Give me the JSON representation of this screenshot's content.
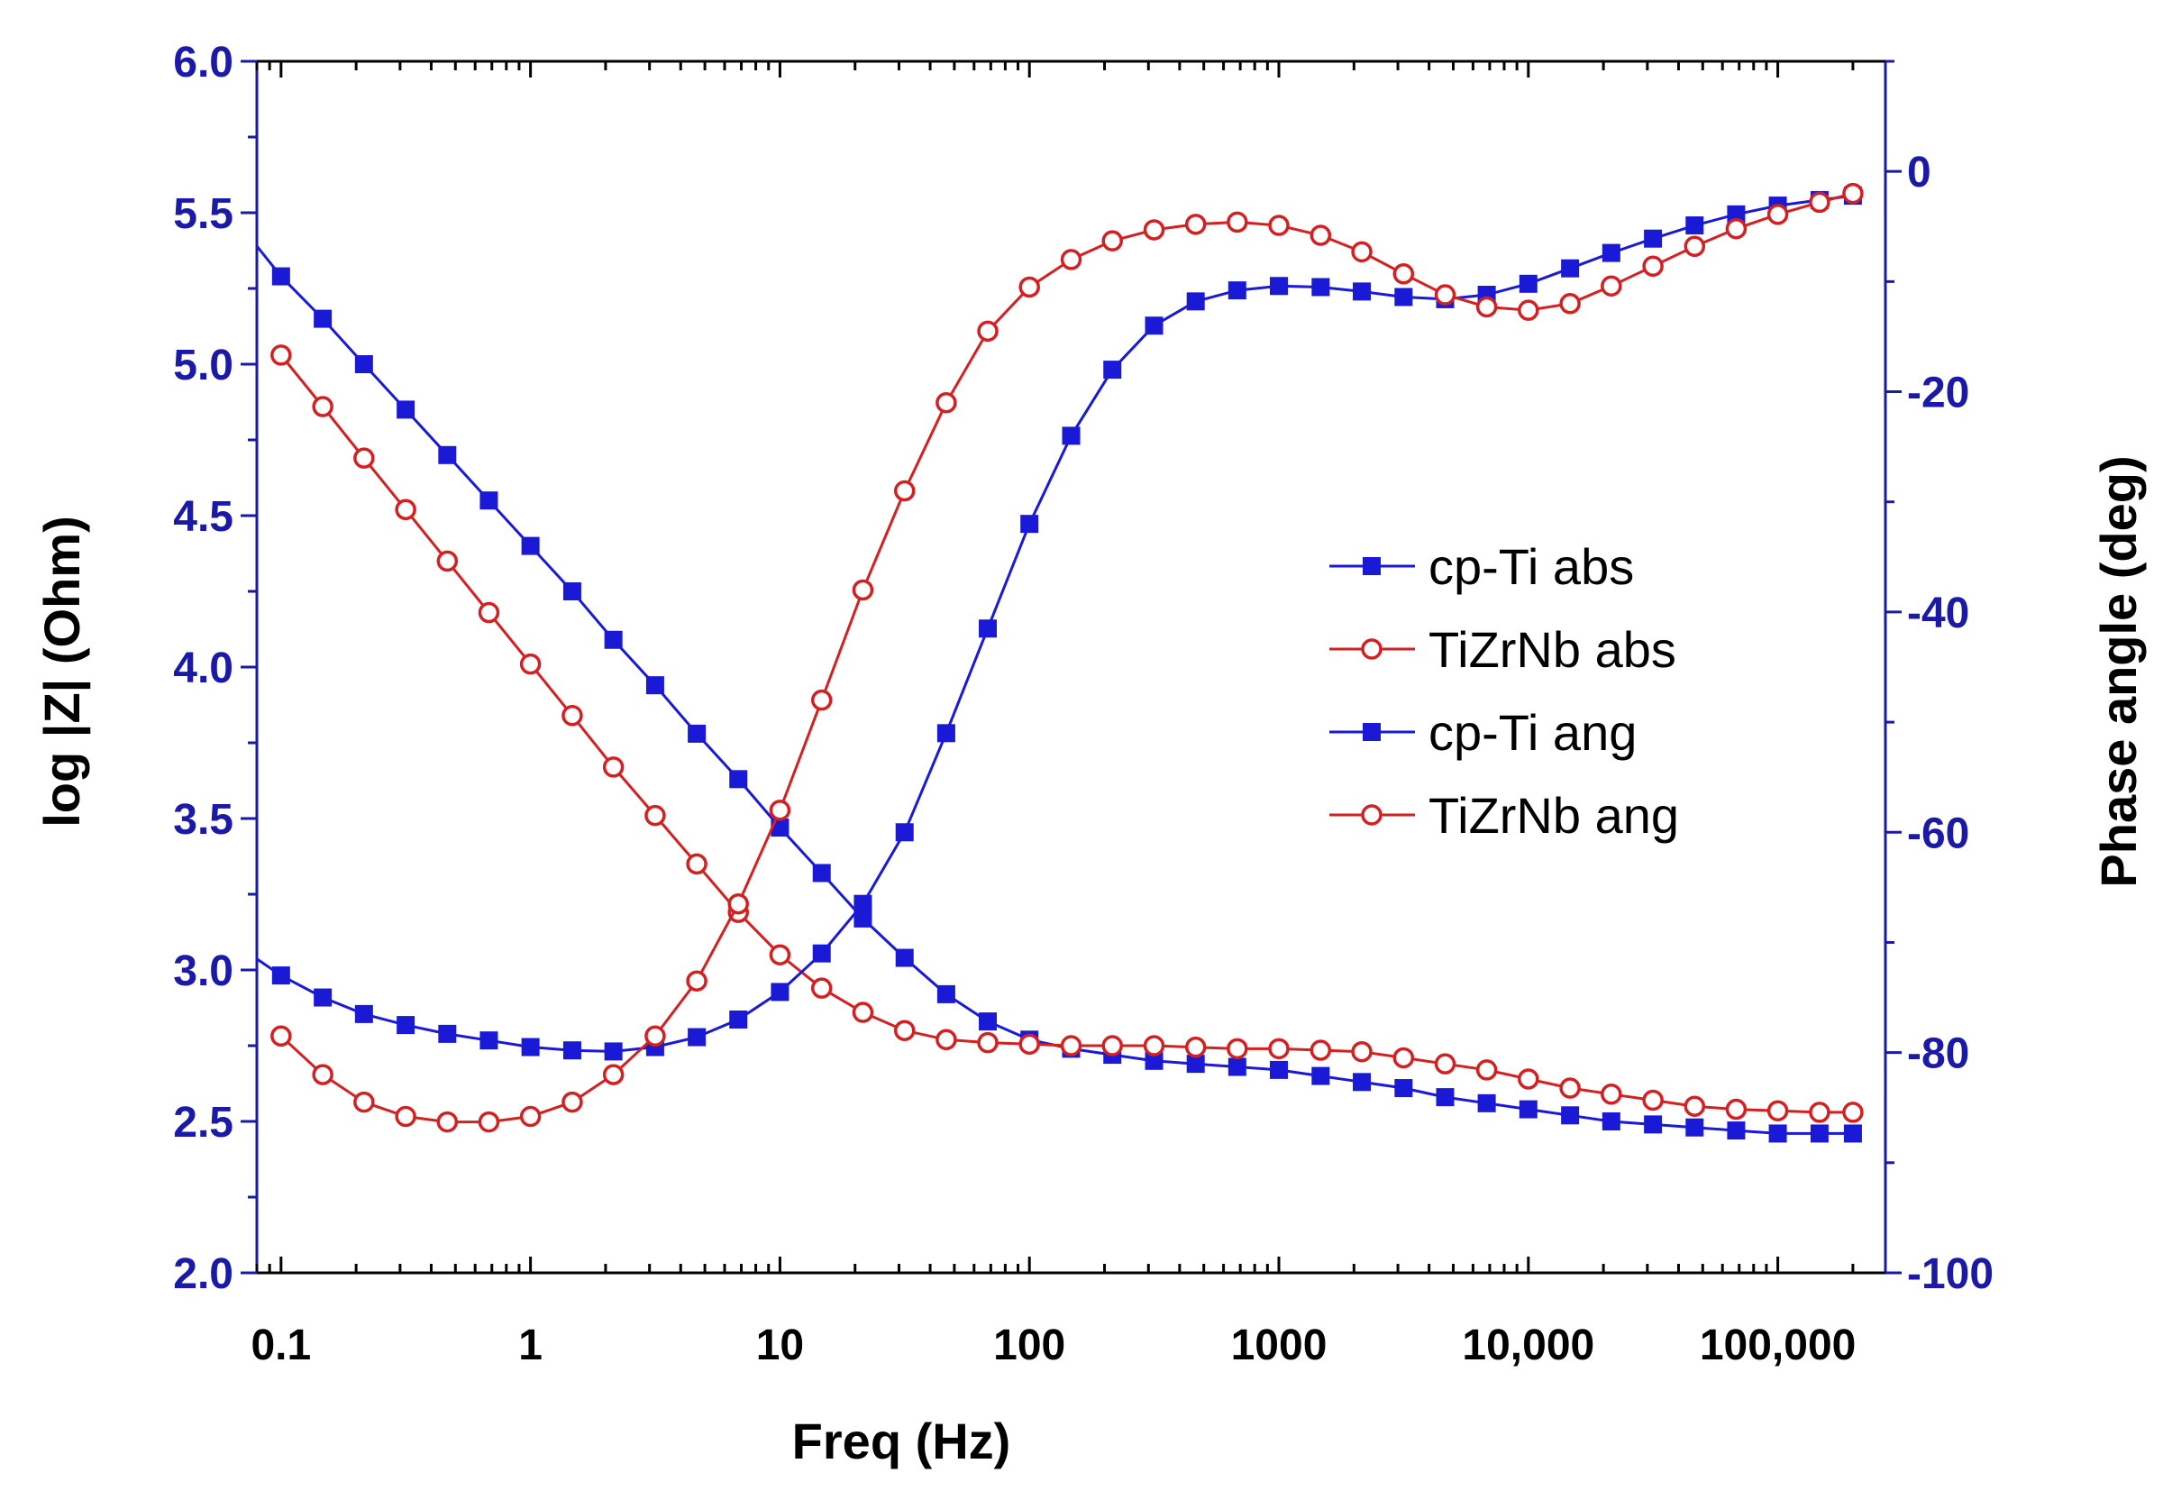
{
  "chart_data": {
    "type": "line",
    "xscale": "log",
    "xlabel": "Freq (Hz)",
    "ylabel_left": "log |Z| (Ohm)",
    "ylabel_right": "Phase angle (deg)",
    "xlim": [
      0.08,
      270000
    ],
    "ylim_left": [
      2.0,
      6.0
    ],
    "ylim_right": [
      -100,
      10
    ],
    "x_ticks": [
      {
        "value": 0.1,
        "label": "0.1"
      },
      {
        "value": 1,
        "label": "1"
      },
      {
        "value": 10,
        "label": "10"
      },
      {
        "value": 100,
        "label": "100"
      },
      {
        "value": 1000,
        "label": "1000"
      },
      {
        "value": 10000,
        "label": "10,000"
      },
      {
        "value": 100000,
        "label": "100,000"
      }
    ],
    "y_left_ticks": [
      {
        "value": 2.0,
        "label": "2.0"
      },
      {
        "value": 2.5,
        "label": "2.5"
      },
      {
        "value": 3.0,
        "label": "3.0"
      },
      {
        "value": 3.5,
        "label": "3.5"
      },
      {
        "value": 4.0,
        "label": "4.0"
      },
      {
        "value": 4.5,
        "label": "4.5"
      },
      {
        "value": 5.0,
        "label": "5.0"
      },
      {
        "value": 5.5,
        "label": "5.5"
      },
      {
        "value": 6.0,
        "label": "6.0"
      }
    ],
    "y_right_ticks": [
      {
        "value": -100,
        "label": "-100"
      },
      {
        "value": -80,
        "label": "-80"
      },
      {
        "value": -60,
        "label": "-60"
      },
      {
        "value": -40,
        "label": "-40"
      },
      {
        "value": -20,
        "label": "-20"
      },
      {
        "value": 0,
        "label": "0"
      }
    ],
    "legend_position": "center-right",
    "colors": {
      "blue": "#1a1ad6",
      "red": "#d42020",
      "axis": "#1a1aa6"
    },
    "series": [
      {
        "name": "cp-Ti abs",
        "axis": "left",
        "marker": "square",
        "color": "#1a1ad6",
        "values": [
          [
            0.08,
            5.39
          ],
          [
            0.1,
            5.29
          ],
          [
            0.147,
            5.15
          ],
          [
            0.215,
            5.0
          ],
          [
            0.316,
            4.85
          ],
          [
            0.464,
            4.7
          ],
          [
            0.681,
            4.55
          ],
          [
            1.0,
            4.4
          ],
          [
            1.47,
            4.25
          ],
          [
            2.15,
            4.09
          ],
          [
            3.16,
            3.94
          ],
          [
            4.64,
            3.78
          ],
          [
            6.81,
            3.63
          ],
          [
            10.0,
            3.47
          ],
          [
            14.7,
            3.32
          ],
          [
            21.5,
            3.17
          ],
          [
            31.6,
            3.04
          ],
          [
            46.4,
            2.92
          ],
          [
            68.1,
            2.83
          ],
          [
            100,
            2.77
          ],
          [
            147,
            2.74
          ],
          [
            215,
            2.72
          ],
          [
            316,
            2.7
          ],
          [
            464,
            2.69
          ],
          [
            681,
            2.68
          ],
          [
            1000,
            2.67
          ],
          [
            1470,
            2.65
          ],
          [
            2150,
            2.63
          ],
          [
            3160,
            2.61
          ],
          [
            4640,
            2.58
          ],
          [
            6810,
            2.56
          ],
          [
            10000,
            2.54
          ],
          [
            14700,
            2.52
          ],
          [
            21500,
            2.5
          ],
          [
            31600,
            2.49
          ],
          [
            46400,
            2.48
          ],
          [
            68100,
            2.47
          ],
          [
            100000,
            2.46
          ],
          [
            147000,
            2.46
          ],
          [
            200000,
            2.46
          ]
        ]
      },
      {
        "name": "TiZrNb abs",
        "axis": "left",
        "marker": "circle",
        "color": "#d42020",
        "values": [
          [
            0.1,
            5.03
          ],
          [
            0.147,
            4.86
          ],
          [
            0.215,
            4.69
          ],
          [
            0.316,
            4.52
          ],
          [
            0.464,
            4.35
          ],
          [
            0.681,
            4.18
          ],
          [
            1.0,
            4.01
          ],
          [
            1.47,
            3.84
          ],
          [
            2.15,
            3.67
          ],
          [
            3.16,
            3.51
          ],
          [
            4.64,
            3.35
          ],
          [
            6.81,
            3.19
          ],
          [
            10.0,
            3.05
          ],
          [
            14.7,
            2.94
          ],
          [
            21.5,
            2.86
          ],
          [
            31.6,
            2.8
          ],
          [
            46.4,
            2.77
          ],
          [
            68.1,
            2.76
          ],
          [
            100,
            2.755
          ],
          [
            147,
            2.75
          ],
          [
            215,
            2.75
          ],
          [
            316,
            2.75
          ],
          [
            464,
            2.745
          ],
          [
            681,
            2.74
          ],
          [
            1000,
            2.74
          ],
          [
            1470,
            2.735
          ],
          [
            2150,
            2.73
          ],
          [
            3160,
            2.71
          ],
          [
            4640,
            2.69
          ],
          [
            6810,
            2.67
          ],
          [
            10000,
            2.64
          ],
          [
            14700,
            2.61
          ],
          [
            21500,
            2.59
          ],
          [
            31600,
            2.57
          ],
          [
            46400,
            2.55
          ],
          [
            68100,
            2.54
          ],
          [
            100000,
            2.535
          ],
          [
            147000,
            2.53
          ],
          [
            200000,
            2.53
          ]
        ]
      },
      {
        "name": "cp-Ti ang",
        "axis": "right",
        "marker": "square",
        "color": "#1a1ad6",
        "values": [
          [
            0.08,
            -71.5
          ],
          [
            0.1,
            -73.0
          ],
          [
            0.147,
            -75.0
          ],
          [
            0.215,
            -76.5
          ],
          [
            0.316,
            -77.5
          ],
          [
            0.464,
            -78.3
          ],
          [
            0.681,
            -78.9
          ],
          [
            1.0,
            -79.5
          ],
          [
            1.47,
            -79.8
          ],
          [
            2.15,
            -79.9
          ],
          [
            3.16,
            -79.5
          ],
          [
            4.64,
            -78.6
          ],
          [
            6.81,
            -77.0
          ],
          [
            10.0,
            -74.5
          ],
          [
            14.7,
            -71.0
          ],
          [
            21.5,
            -66.5
          ],
          [
            31.6,
            -60.0
          ],
          [
            46.4,
            -51.0
          ],
          [
            68.1,
            -41.5
          ],
          [
            100,
            -32.0
          ],
          [
            147,
            -24.0
          ],
          [
            215,
            -18.0
          ],
          [
            316,
            -14.0
          ],
          [
            464,
            -11.8
          ],
          [
            681,
            -10.8
          ],
          [
            1000,
            -10.4
          ],
          [
            1470,
            -10.5
          ],
          [
            2150,
            -10.9
          ],
          [
            3160,
            -11.4
          ],
          [
            4640,
            -11.6
          ],
          [
            6810,
            -11.2
          ],
          [
            10000,
            -10.2
          ],
          [
            14700,
            -8.8
          ],
          [
            21500,
            -7.4
          ],
          [
            31600,
            -6.1
          ],
          [
            46400,
            -4.9
          ],
          [
            68100,
            -3.9
          ],
          [
            100000,
            -3.1
          ],
          [
            147000,
            -2.6
          ],
          [
            200000,
            -2.2
          ]
        ]
      },
      {
        "name": "TiZrNb ang",
        "axis": "right",
        "marker": "circle",
        "color": "#d42020",
        "values": [
          [
            0.1,
            -78.5
          ],
          [
            0.147,
            -82.0
          ],
          [
            0.215,
            -84.5
          ],
          [
            0.316,
            -85.8
          ],
          [
            0.464,
            -86.3
          ],
          [
            0.681,
            -86.3
          ],
          [
            1.0,
            -85.8
          ],
          [
            1.47,
            -84.5
          ],
          [
            2.15,
            -82.0
          ],
          [
            3.16,
            -78.5
          ],
          [
            4.64,
            -73.5
          ],
          [
            6.81,
            -66.5
          ],
          [
            10.0,
            -58.0
          ],
          [
            14.7,
            -48.0
          ],
          [
            21.5,
            -38.0
          ],
          [
            31.6,
            -29.0
          ],
          [
            46.4,
            -21.0
          ],
          [
            68.1,
            -14.5
          ],
          [
            100,
            -10.5
          ],
          [
            147,
            -8.0
          ],
          [
            215,
            -6.3
          ],
          [
            316,
            -5.3
          ],
          [
            464,
            -4.8
          ],
          [
            681,
            -4.6
          ],
          [
            1000,
            -4.9
          ],
          [
            1470,
            -5.8
          ],
          [
            2150,
            -7.3
          ],
          [
            3160,
            -9.3
          ],
          [
            4640,
            -11.2
          ],
          [
            6810,
            -12.3
          ],
          [
            10000,
            -12.6
          ],
          [
            14700,
            -12.0
          ],
          [
            21500,
            -10.4
          ],
          [
            31600,
            -8.6
          ],
          [
            46400,
            -6.8
          ],
          [
            68100,
            -5.2
          ],
          [
            100000,
            -3.9
          ],
          [
            147000,
            -2.8
          ],
          [
            200000,
            -2.0
          ]
        ]
      }
    ]
  }
}
